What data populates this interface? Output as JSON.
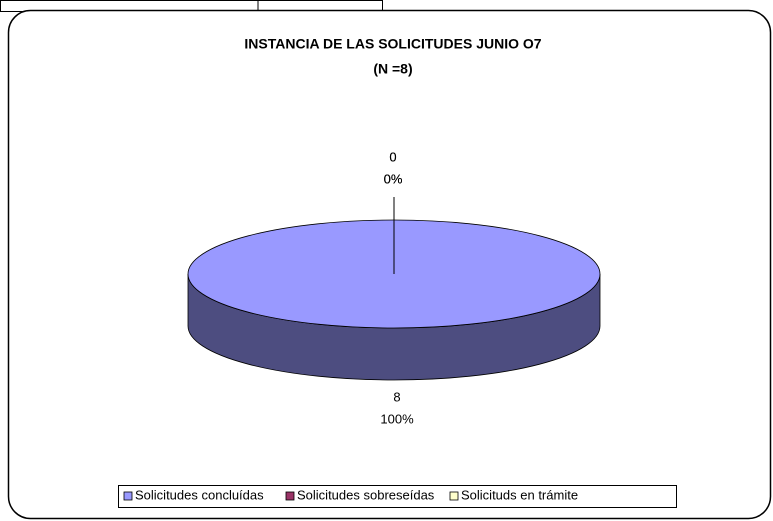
{
  "chart_data": {
    "type": "pie3d",
    "title": "INSTANCIA DE LAS SOLICITUDES JUNIO O7",
    "subtitle": "(N =8)",
    "categories": [
      "Solicitudes concluídas",
      "Solicitudes sobreseídas",
      "Solicituds en trámite"
    ],
    "values": [
      8,
      0,
      0
    ],
    "percentages": [
      100,
      0,
      0
    ],
    "percent_labels": [
      "100%",
      "0%",
      "0%"
    ],
    "colors": [
      "#9999ff",
      "#993366",
      "#ffffcc"
    ],
    "legend": "bottom"
  }
}
